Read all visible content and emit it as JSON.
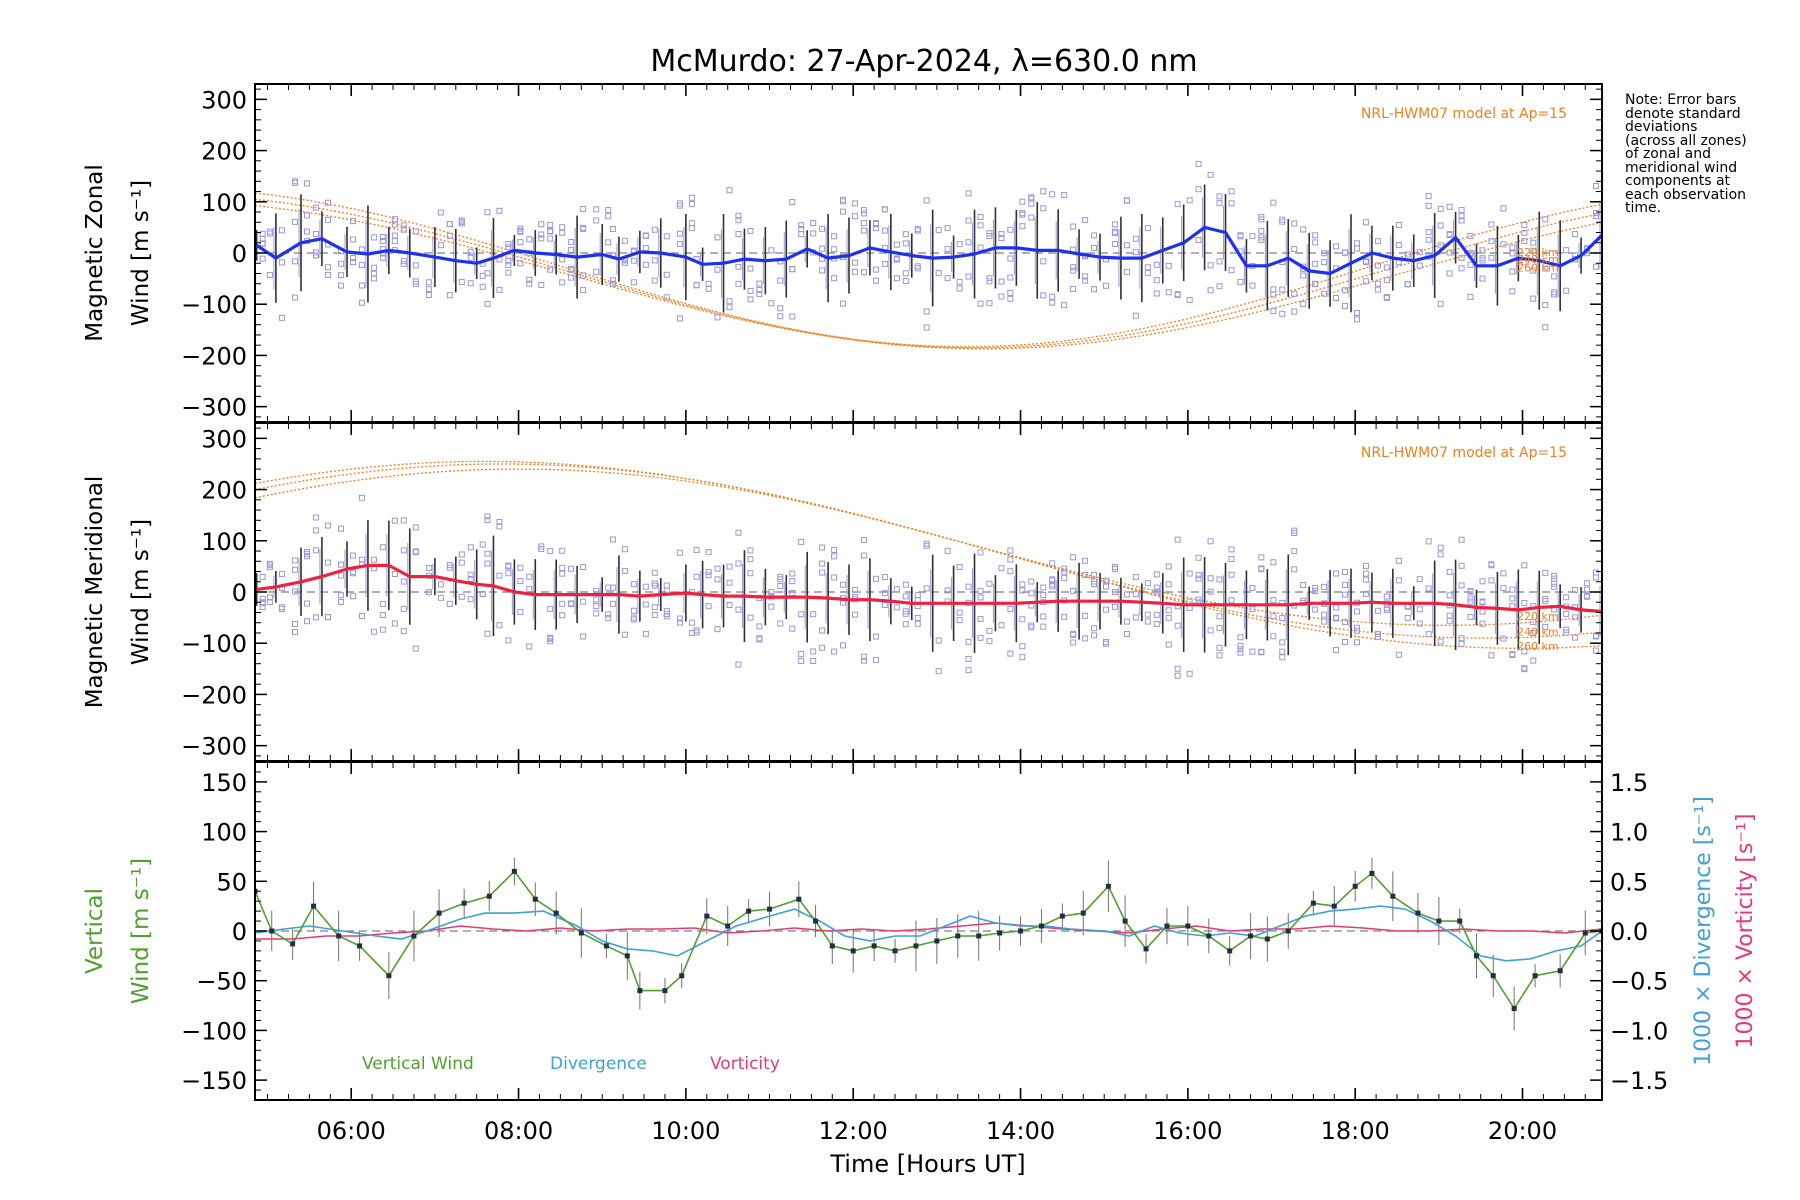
{
  "title": "McMurdo: 27-Apr-2024, λ=630.0 nm",
  "note": "Note: Error bars\ndenote standard\ndeviations\n(across all zones)\nof zonal and\nmeridional wind\ncomponents at\neach observation\ntime.",
  "colors": {
    "zonal": "#2030f0",
    "meridional": "#f02040",
    "model": "#f08020",
    "zone_points": "#9898d8",
    "vertical": "#50a030",
    "divergence": "#40a0d8",
    "vorticity": "#e83878",
    "errorbar": "#505050"
  },
  "chart_data": [
    {
      "type": "line",
      "panel": "top",
      "ylabel_line1": "Magnetic Zonal",
      "ylabel_line2": "Wind [m s⁻¹]",
      "ylim": [
        -330,
        330
      ],
      "yticks": [
        300,
        200,
        100,
        0,
        -100,
        -200,
        -300
      ],
      "xlim": [
        4.85,
        20.95
      ],
      "model_label": "NRL-HWM07 model at Ap=15",
      "model_altitudes": [
        "220 km",
        "240 km",
        "260 km"
      ],
      "series": [
        {
          "x": [
            4.87,
            5.1,
            5.4,
            5.65,
            5.95,
            6.2,
            6.45,
            6.7,
            7.0,
            7.25,
            7.5,
            7.7,
            7.95,
            8.2,
            8.45,
            8.7,
            9.0,
            9.2,
            9.45,
            9.7,
            10.0,
            10.2,
            10.45,
            10.7,
            10.95,
            11.2,
            11.45,
            11.7,
            11.95,
            12.2,
            12.45,
            12.7,
            12.95,
            13.2,
            13.45,
            13.7,
            13.95,
            14.2,
            14.45,
            14.7,
            14.95,
            15.2,
            15.45,
            15.7,
            15.95,
            16.2,
            16.45,
            16.7,
            16.95,
            17.2,
            17.45,
            17.7,
            17.95,
            18.2,
            18.45,
            18.7,
            18.95,
            19.2,
            19.45,
            19.7,
            19.95,
            20.2,
            20.45,
            20.7,
            20.95
          ],
          "y": [
            15,
            -10,
            20,
            28,
            2,
            -2,
            5,
            0,
            -8,
            -15,
            -20,
            -10,
            5,
            0,
            -3,
            -8,
            -3,
            -12,
            2,
            0,
            -8,
            -22,
            -20,
            -12,
            -15,
            -12,
            8,
            -10,
            -5,
            10,
            2,
            -5,
            -10,
            -8,
            -2,
            10,
            10,
            5,
            5,
            -2,
            -8,
            -10,
            -10,
            5,
            20,
            50,
            40,
            -25,
            -25,
            -10,
            -35,
            -40,
            -20,
            0,
            -10,
            -15,
            -5,
            30,
            -25,
            -25,
            -10,
            -15,
            -25,
            -5,
            35
          ]
        }
      ],
      "model": [
        {
          "name": "220 km",
          "amp": 155,
          "offset": -28,
          "peak": 13.35,
          "period": 19.2
        },
        {
          "name": "240 km",
          "amp": 150,
          "offset": -35,
          "peak": 13.45,
          "period": 19.5
        },
        {
          "name": "260 km",
          "amp": 145,
          "offset": -42,
          "peak": 13.55,
          "period": 19.8
        }
      ]
    },
    {
      "type": "line",
      "panel": "middle",
      "ylabel_line1": "Magnetic Meridional",
      "ylabel_line2": "Wind [m s⁻¹]",
      "ylim": [
        -330,
        330
      ],
      "yticks": [
        300,
        200,
        100,
        0,
        -100,
        -200,
        -300
      ],
      "xlim": [
        4.85,
        20.95
      ],
      "model_label": "NRL-HWM07 model at Ap=15",
      "model_altitudes": [
        "220 km",
        "240 km",
        "260 km"
      ],
      "series": [
        {
          "x": [
            4.87,
            5.1,
            5.4,
            5.65,
            5.95,
            6.2,
            6.45,
            6.7,
            7.0,
            7.25,
            7.5,
            7.7,
            7.95,
            8.2,
            8.45,
            8.7,
            9.0,
            9.2,
            9.45,
            9.7,
            10.0,
            10.2,
            10.45,
            10.7,
            10.95,
            11.2,
            11.45,
            11.7,
            11.95,
            12.2,
            12.45,
            12.7,
            12.95,
            13.2,
            13.45,
            13.7,
            13.95,
            14.2,
            14.45,
            14.7,
            14.95,
            15.2,
            15.45,
            15.7,
            15.95,
            16.2,
            16.45,
            16.7,
            16.95,
            17.2,
            17.45,
            17.7,
            17.95,
            18.2,
            18.45,
            18.7,
            18.95,
            19.2,
            19.45,
            19.7,
            19.95,
            20.2,
            20.45,
            20.7,
            20.95
          ],
          "y": [
            5,
            10,
            20,
            30,
            45,
            52,
            52,
            30,
            30,
            22,
            15,
            12,
            0,
            -5,
            -5,
            -5,
            -5,
            -5,
            -8,
            -5,
            -2,
            -5,
            -8,
            -8,
            -10,
            -10,
            -10,
            -12,
            -15,
            -15,
            -18,
            -22,
            -22,
            -22,
            -22,
            -22,
            -22,
            -20,
            -18,
            -18,
            -18,
            -18,
            -20,
            -22,
            -25,
            -25,
            -25,
            -25,
            -25,
            -25,
            -22,
            -22,
            -22,
            -20,
            -22,
            -22,
            -22,
            -25,
            -30,
            -32,
            -35,
            -30,
            -28,
            -35,
            -38
          ]
        }
      ],
      "model": [
        {
          "name": "220 km",
          "amp": 160,
          "offset": 95,
          "peak": 7.6,
          "period": 23
        },
        {
          "name": "240 km",
          "amp": 170,
          "offset": 80,
          "peak": 7.8,
          "period": 23.5
        },
        {
          "name": "260 km",
          "amp": 175,
          "offset": 65,
          "peak": 8.0,
          "period": 24
        }
      ]
    },
    {
      "type": "line",
      "panel": "bottom",
      "ylabel_line1": "Vertical",
      "ylabel_line2": "Wind [m s⁻¹]",
      "ylim": [
        -170,
        170
      ],
      "yticks": [
        150,
        100,
        50,
        0,
        -50,
        -100,
        -150
      ],
      "y2lim": [
        -1.7,
        1.7
      ],
      "y2ticks": [
        "1.5",
        "1.0",
        "0.5",
        "0.0",
        "−0.5",
        "−1.0",
        "−1.5"
      ],
      "y2label_divergence": "1000 × Divergence [s⁻¹]",
      "y2label_vorticity": "1000 × Vorticity [s⁻¹]",
      "xlim": [
        4.85,
        20.95
      ],
      "xticks": [
        "06:00",
        "08:00",
        "10:00",
        "12:00",
        "14:00",
        "16:00",
        "18:00",
        "20:00"
      ],
      "xlabel": "Time [Hours UT]",
      "legend": [
        "Vertical Wind",
        "Divergence",
        "Vorticity"
      ],
      "series": [
        {
          "name": "Vertical Wind",
          "x": [
            4.85,
            5.05,
            5.3,
            5.55,
            5.85,
            6.1,
            6.45,
            6.75,
            7.05,
            7.35,
            7.65,
            7.95,
            8.2,
            8.45,
            8.75,
            9.05,
            9.3,
            9.45,
            9.75,
            9.95,
            10.25,
            10.5,
            10.75,
            11.0,
            11.35,
            11.55,
            11.75,
            12.0,
            12.25,
            12.5,
            12.75,
            13.0,
            13.25,
            13.5,
            13.75,
            14.0,
            14.25,
            14.5,
            14.75,
            15.05,
            15.25,
            15.5,
            15.75,
            16.0,
            16.25,
            16.5,
            16.75,
            16.95,
            17.2,
            17.5,
            17.75,
            18.0,
            18.2,
            18.45,
            18.75,
            19.0,
            19.25,
            19.45,
            19.65,
            19.9,
            20.15,
            20.45,
            20.75,
            20.95
          ],
          "y": [
            40,
            0,
            -13,
            25,
            -5,
            -15,
            -45,
            -5,
            18,
            28,
            35,
            60,
            32,
            18,
            -2,
            -15,
            -25,
            -60,
            -60,
            -45,
            15,
            5,
            20,
            22,
            32,
            10,
            -15,
            -20,
            -15,
            -20,
            -15,
            -10,
            -5,
            -5,
            -2,
            0,
            5,
            15,
            18,
            45,
            10,
            -18,
            5,
            5,
            -5,
            -20,
            -5,
            -8,
            0,
            28,
            25,
            45,
            58,
            35,
            18,
            10,
            10,
            -25,
            -45,
            -78,
            -45,
            -40,
            -2,
            0
          ]
        },
        {
          "name": "Divergence",
          "x": [
            4.85,
            5.2,
            5.5,
            5.9,
            6.3,
            6.6,
            6.9,
            7.3,
            7.6,
            7.95,
            8.3,
            8.7,
            9.0,
            9.3,
            9.6,
            9.9,
            10.2,
            10.6,
            11.0,
            11.3,
            11.6,
            11.9,
            12.2,
            12.5,
            12.8,
            13.1,
            13.4,
            13.7,
            14.0,
            14.3,
            14.6,
            15.0,
            15.3,
            15.6,
            15.9,
            16.2,
            16.5,
            16.8,
            17.1,
            17.4,
            17.7,
            18.0,
            18.3,
            18.6,
            18.9,
            19.2,
            19.5,
            19.8,
            20.1,
            20.4,
            20.7,
            20.95
          ],
          "y": [
            -0.02,
            0.02,
            0.05,
            0.0,
            -0.05,
            -0.08,
            0.0,
            0.12,
            0.18,
            0.18,
            0.2,
            0.05,
            -0.1,
            -0.18,
            -0.2,
            -0.25,
            -0.12,
            0.05,
            0.15,
            0.22,
            0.1,
            -0.05,
            -0.1,
            -0.05,
            -0.05,
            0.05,
            0.15,
            0.08,
            0.05,
            0.05,
            0.02,
            0.0,
            -0.05,
            0.05,
            -0.02,
            -0.05,
            -0.02,
            -0.05,
            0.05,
            0.15,
            0.2,
            0.22,
            0.25,
            0.22,
            0.1,
            -0.05,
            -0.25,
            -0.3,
            -0.28,
            -0.2,
            -0.15,
            0.0
          ]
        },
        {
          "name": "Vorticity",
          "x": [
            4.85,
            5.3,
            5.7,
            6.1,
            6.5,
            6.9,
            7.3,
            7.7,
            8.1,
            8.5,
            8.9,
            9.3,
            9.7,
            10.1,
            10.5,
            10.9,
            11.3,
            11.7,
            12.1,
            12.5,
            12.9,
            13.3,
            13.7,
            14.1,
            14.5,
            14.9,
            15.3,
            15.7,
            16.1,
            16.5,
            16.9,
            17.3,
            17.7,
            18.1,
            18.5,
            18.9,
            19.3,
            19.7,
            20.1,
            20.5,
            20.95
          ],
          "y": [
            -0.08,
            -0.08,
            -0.05,
            -0.05,
            -0.02,
            0.0,
            0.05,
            0.02,
            0.0,
            0.03,
            0.0,
            0.02,
            0.02,
            0.03,
            -0.02,
            0.0,
            0.03,
            0.0,
            0.02,
            0.0,
            0.02,
            0.05,
            0.08,
            0.05,
            0.02,
            0.0,
            -0.02,
            0.02,
            0.05,
            0.0,
            0.02,
            0.02,
            0.05,
            0.03,
            0.0,
            0.0,
            0.02,
            0.0,
            0.0,
            -0.02,
            0.02
          ]
        }
      ]
    }
  ]
}
